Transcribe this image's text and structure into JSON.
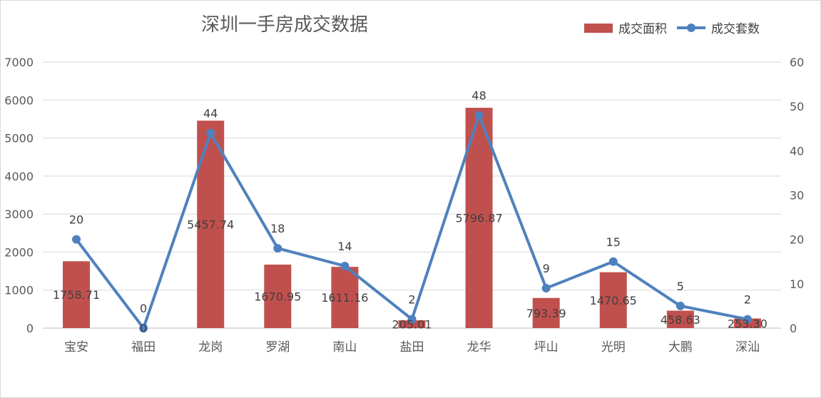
{
  "chart_data": {
    "type": "bar+line",
    "title": "深圳一手房成交数据",
    "categories": [
      "宝安",
      "福田",
      "龙岗",
      "罗湖",
      "南山",
      "盐田",
      "龙华",
      "坪山",
      "光明",
      "大鹏",
      "深汕"
    ],
    "series": [
      {
        "name": "成交面积",
        "type": "bar",
        "axis": "left",
        "color": "#c0504d",
        "values": [
          1758.71,
          0,
          5457.74,
          1670.95,
          1611.16,
          205.01,
          5796.87,
          793.39,
          1470.65,
          458.63,
          253.3
        ],
        "labels": [
          "1758.71",
          "0",
          "5457.74",
          "1670.95",
          "1611.16",
          "205.01",
          "5796.87",
          "793.39",
          "1470.65",
          "458.63",
          "253.30"
        ]
      },
      {
        "name": "成交套数",
        "type": "line",
        "axis": "right",
        "color": "#4f81bd",
        "values": [
          20,
          0,
          44,
          18,
          14,
          2,
          48,
          9,
          15,
          5,
          2
        ],
        "labels": [
          "20",
          "0",
          "44",
          "18",
          "14",
          "2",
          "48",
          "9",
          "15",
          "5",
          "2"
        ]
      }
    ],
    "y_left": {
      "min": 0,
      "max": 7000,
      "ticks": [
        "0",
        "1000",
        "2000",
        "3000",
        "4000",
        "5000",
        "6000",
        "7000"
      ]
    },
    "y_right": {
      "min": 0,
      "max": 60,
      "ticks": [
        "0",
        "10",
        "20",
        "30",
        "40",
        "50",
        "60"
      ]
    },
    "grid": true,
    "legend": "top-right"
  }
}
